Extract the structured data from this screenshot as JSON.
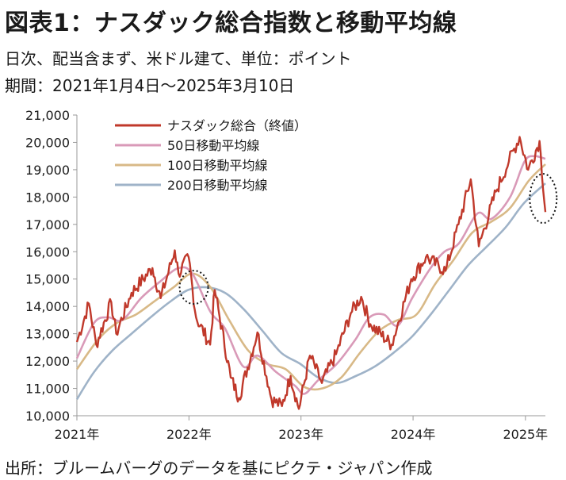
{
  "title": "図表1：ナスダック総合指数と移動平均線",
  "subtitle1": "日次、配当含まず、米ドル建て、単位：ポイント",
  "subtitle2": "期間：2021年1月4日～2025年3月10日",
  "source": "出所：ブルームバーグのデータを基にピクテ・ジャパン作成",
  "chart_data": {
    "type": "line",
    "title": "図表1：ナスダック総合指数と移動平均線",
    "xlabel": "",
    "ylabel": "",
    "x_ticks": [
      "2021年",
      "2022年",
      "2023年",
      "2024年",
      "2025年"
    ],
    "x_tick_years": [
      2021,
      2022,
      2023,
      2024,
      2025
    ],
    "xlim": [
      "2021-01-04",
      "2025-03-10"
    ],
    "ylim": [
      10000,
      21000
    ],
    "y_ticks": [
      10000,
      11000,
      12000,
      13000,
      14000,
      15000,
      16000,
      17000,
      18000,
      19000,
      20000,
      21000
    ],
    "y_tick_labels": [
      "10,000",
      "11,000",
      "12,000",
      "13,000",
      "14,000",
      "15,000",
      "16,000",
      "17,000",
      "18,000",
      "19,000",
      "20,000",
      "21,000"
    ],
    "grid": false,
    "legend_position": "top-left",
    "series": [
      {
        "name": "ナスダック総合（終値）",
        "color": "#c0392b",
        "x": [
          "2021-01-04",
          "2021-02-12",
          "2021-03-08",
          "2021-04-26",
          "2021-05-12",
          "2021-07-01",
          "2021-09-07",
          "2021-10-04",
          "2021-11-19",
          "2021-12-01",
          "2022-01-03",
          "2022-01-27",
          "2022-03-14",
          "2022-03-29",
          "2022-05-20",
          "2022-06-16",
          "2022-08-15",
          "2022-09-30",
          "2022-11-03",
          "2022-12-01",
          "2022-12-28",
          "2023-02-02",
          "2023-03-13",
          "2023-04-28",
          "2023-06-15",
          "2023-07-19",
          "2023-08-18",
          "2023-10-26",
          "2023-12-29",
          "2024-02-15",
          "2024-04-19",
          "2024-05-31",
          "2024-07-10",
          "2024-08-05",
          "2024-09-30",
          "2024-11-11",
          "2024-12-16",
          "2025-01-13",
          "2025-02-19",
          "2025-03-10"
        ],
        "values": [
          12700,
          14100,
          12600,
          14150,
          13000,
          14500,
          15400,
          14300,
          16050,
          15200,
          15800,
          13600,
          12600,
          14600,
          11400,
          10650,
          13050,
          10600,
          10350,
          11450,
          10250,
          12200,
          11200,
          12250,
          13750,
          14350,
          13350,
          12600,
          15000,
          15800,
          15300,
          17000,
          18650,
          16200,
          18200,
          19300,
          20200,
          19000,
          20050,
          17450
        ]
      },
      {
        "name": "50日移動平均線",
        "color": "#d99ab8",
        "x": [
          "2021-01-04",
          "2021-03-01",
          "2021-04-15",
          "2021-06-01",
          "2021-08-01",
          "2021-10-01",
          "2021-12-01",
          "2022-01-15",
          "2022-03-15",
          "2022-05-01",
          "2022-06-30",
          "2022-08-15",
          "2022-10-15",
          "2022-12-15",
          "2023-01-15",
          "2023-03-01",
          "2023-05-01",
          "2023-07-01",
          "2023-08-15",
          "2023-10-01",
          "2023-11-15",
          "2024-01-01",
          "2024-03-01",
          "2024-04-15",
          "2024-06-01",
          "2024-08-01",
          "2024-09-15",
          "2024-11-15",
          "2025-01-01",
          "2025-02-01",
          "2025-03-10"
        ],
        "values": [
          12100,
          13400,
          13600,
          13500,
          14300,
          14900,
          15400,
          15200,
          13800,
          13200,
          11800,
          12200,
          11600,
          11100,
          10800,
          11300,
          11900,
          12800,
          13600,
          13700,
          13300,
          14300,
          15400,
          16000,
          16300,
          17400,
          17200,
          18000,
          19300,
          19500,
          19400
        ]
      },
      {
        "name": "100日移動平均線",
        "color": "#d8b987",
        "x": [
          "2021-01-04",
          "2021-03-15",
          "2021-05-15",
          "2021-07-15",
          "2021-09-15",
          "2021-11-15",
          "2022-01-15",
          "2022-03-15",
          "2022-05-15",
          "2022-07-15",
          "2022-09-15",
          "2022-11-15",
          "2023-01-15",
          "2023-03-15",
          "2023-05-15",
          "2023-07-15",
          "2023-09-15",
          "2023-11-15",
          "2024-01-15",
          "2024-03-15",
          "2024-05-15",
          "2024-07-15",
          "2024-09-15",
          "2024-11-15",
          "2025-01-15",
          "2025-03-10"
        ],
        "values": [
          11700,
          12800,
          13400,
          13700,
          14200,
          14700,
          15200,
          14700,
          13500,
          12400,
          11900,
          11700,
          11050,
          11000,
          11400,
          12300,
          13100,
          13500,
          13700,
          14800,
          15700,
          16700,
          17100,
          17600,
          18600,
          19200
        ]
      },
      {
        "name": "200日移動平均線",
        "color": "#9fb3c8",
        "x": [
          "2021-01-04",
          "2021-03-01",
          "2021-05-01",
          "2021-07-01",
          "2021-09-01",
          "2021-11-01",
          "2022-01-01",
          "2022-03-01",
          "2022-05-01",
          "2022-07-01",
          "2022-09-01",
          "2022-11-01",
          "2023-01-01",
          "2023-03-01",
          "2023-05-01",
          "2023-07-01",
          "2023-09-01",
          "2023-11-01",
          "2024-01-01",
          "2024-03-01",
          "2024-05-01",
          "2024-07-01",
          "2024-09-01",
          "2024-11-01",
          "2025-01-01",
          "2025-03-10"
        ],
        "values": [
          10600,
          11600,
          12400,
          13000,
          13600,
          14150,
          14600,
          14700,
          14500,
          13900,
          13100,
          12300,
          11900,
          11400,
          11200,
          11450,
          11800,
          12300,
          12900,
          13700,
          14600,
          15500,
          16200,
          16900,
          17800,
          18500
        ]
      }
    ],
    "annotations": [
      {
        "type": "dotted-ellipse",
        "color": "#1a1a1a",
        "date": "2022-01-20",
        "value": 14700
      },
      {
        "type": "dotted-ellipse",
        "color": "#1a1a1a",
        "date": "2025-03-03",
        "value": 17950
      }
    ]
  }
}
